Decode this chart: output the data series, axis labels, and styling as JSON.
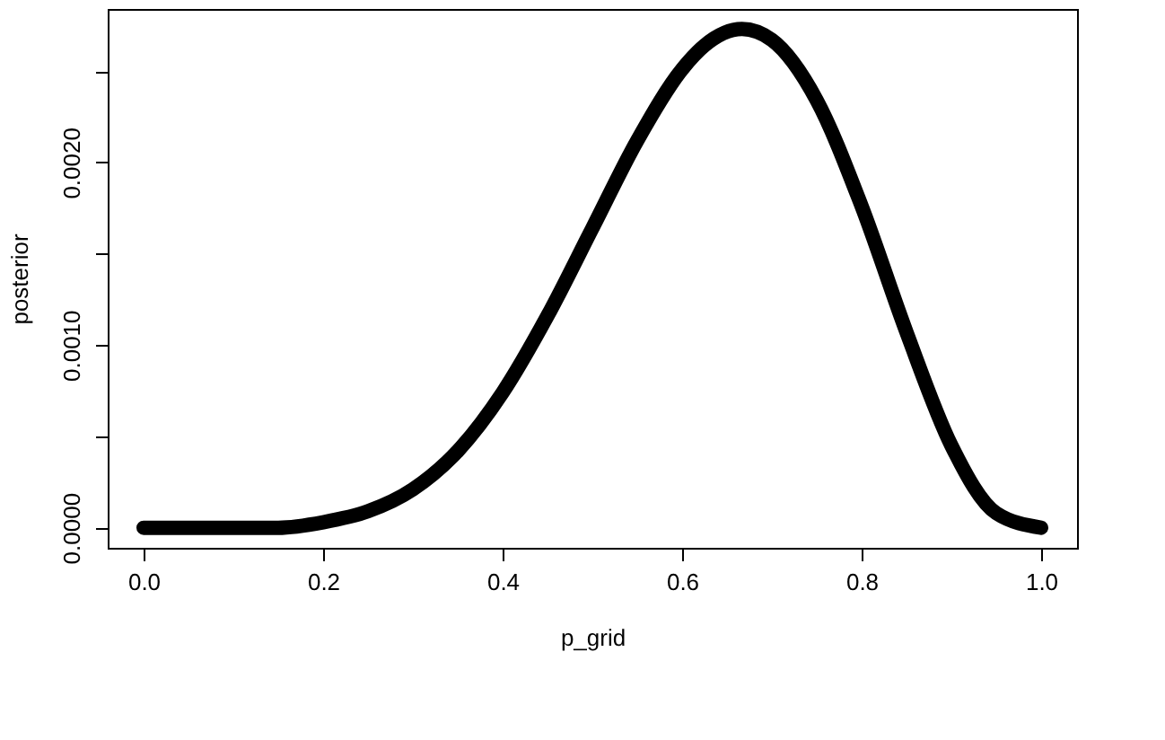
{
  "chart_data": {
    "type": "line",
    "xlabel": "p_grid",
    "ylabel": "posterior",
    "marker": "none",
    "line_style": "solid",
    "grid": false,
    "x": [
      0,
      0.05,
      0.1,
      0.15,
      0.2,
      0.25,
      0.3,
      0.35,
      0.4,
      0.45,
      0.5,
      0.55,
      0.6,
      0.625,
      0.6667,
      0.7,
      0.75,
      0.8,
      0.85,
      0.9,
      0.95,
      1
    ],
    "series": [
      {
        "color": "#000000",
        "values": [
          0,
          0,
          0,
          0,
          3e-05,
          9e-05,
          0.00021,
          0.00042,
          0.00074,
          0.00116,
          0.00164,
          0.00212,
          0.00251,
          0.00264,
          0.00273,
          0.00267,
          0.00234,
          0.00176,
          0.00107,
          0.00045,
          8e-05,
          0
        ]
      }
    ],
    "xlim": [
      -0.04,
      1.04
    ],
    "ylim": [
      -0.00011,
      0.00284
    ],
    "xticks": [
      {
        "value": 0,
        "label": "0.0"
      },
      0.2,
      0.4,
      0.6,
      0.8,
      {
        "value": 1,
        "label": "1.0"
      }
    ],
    "yticks": [
      {
        "value": 0,
        "label": "0.0000"
      },
      {
        "value": 0.0005,
        "label": null
      },
      {
        "value": 0.001,
        "label": "0.0010"
      },
      {
        "value": 0.0015,
        "label": null
      },
      {
        "value": 0.002,
        "label": "0.0020"
      },
      {
        "value": 0.0025,
        "label": null
      }
    ]
  }
}
